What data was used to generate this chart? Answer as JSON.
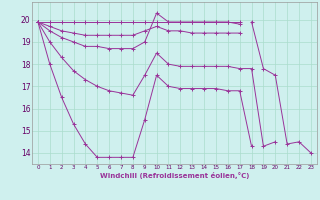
{
  "xlabel": "Windchill (Refroidissement éolien,°C)",
  "background_color": "#cff0ee",
  "grid_color": "#aaddcc",
  "line_color": "#993399",
  "x_ticks": [
    0,
    1,
    2,
    3,
    4,
    5,
    6,
    7,
    8,
    9,
    10,
    11,
    12,
    13,
    14,
    15,
    16,
    17,
    18,
    19,
    20,
    21,
    22,
    23
  ],
  "y_ticks": [
    14,
    15,
    16,
    17,
    18,
    19,
    20
  ],
  "xlim": [
    -0.5,
    23.5
  ],
  "ylim": [
    13.5,
    20.8
  ],
  "series": [
    [
      19.9,
      19.9,
      19.9,
      19.9,
      19.9,
      19.9,
      19.9,
      19.9,
      19.9,
      19.9,
      19.9,
      19.9,
      19.9,
      19.9,
      19.9,
      19.9,
      19.9,
      19.9,
      null,
      null,
      null,
      null,
      null,
      null
    ],
    [
      19.9,
      19.7,
      19.5,
      19.4,
      19.3,
      19.3,
      19.3,
      19.3,
      19.3,
      19.5,
      19.7,
      19.5,
      19.5,
      19.4,
      19.4,
      19.4,
      19.4,
      19.4,
      null,
      null,
      null,
      null,
      null,
      null
    ],
    [
      19.9,
      19.5,
      19.2,
      19.0,
      18.8,
      18.8,
      18.7,
      18.7,
      18.7,
      19.0,
      20.3,
      19.9,
      19.9,
      19.9,
      19.9,
      19.9,
      19.9,
      19.8,
      null,
      null,
      null,
      null,
      null,
      null
    ],
    [
      19.9,
      19.0,
      18.3,
      17.7,
      17.3,
      17.0,
      16.8,
      16.7,
      16.6,
      17.5,
      18.5,
      18.0,
      17.9,
      17.9,
      17.9,
      17.9,
      17.9,
      17.8,
      17.8,
      14.3,
      14.5,
      null,
      null,
      null
    ],
    [
      19.9,
      18.0,
      16.5,
      15.3,
      14.4,
      13.8,
      13.8,
      13.8,
      13.8,
      15.5,
      17.5,
      17.0,
      16.9,
      16.9,
      16.9,
      16.9,
      16.8,
      16.8,
      14.3,
      null,
      null,
      null,
      null,
      null
    ],
    [
      null,
      null,
      null,
      null,
      null,
      null,
      null,
      null,
      null,
      null,
      null,
      null,
      null,
      null,
      null,
      null,
      null,
      null,
      19.9,
      17.8,
      17.5,
      14.4,
      14.5,
      14.0
    ]
  ]
}
